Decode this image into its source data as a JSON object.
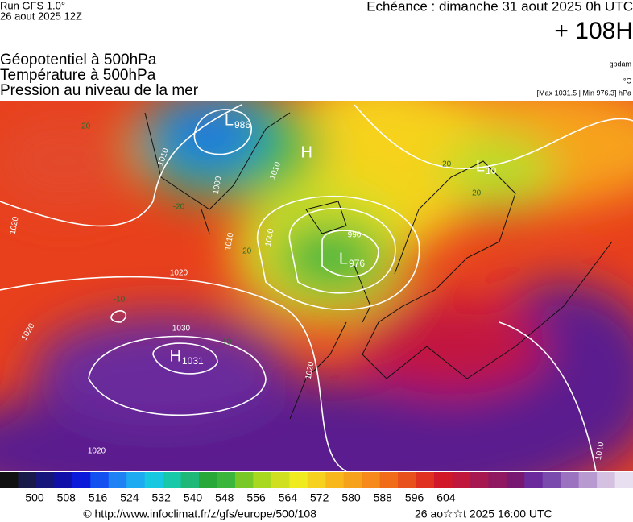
{
  "header": {
    "run": "Run GFS 1.0°",
    "run_date": "26 aout 2025 12Z",
    "valid": "Echéance : dimanche 31 aout 2025 0h UTC",
    "lead": "+ 108H",
    "fields": [
      "Géopotentiel à 500hPa",
      "Température à 500hPa",
      "Pression au niveau de la mer"
    ],
    "unit_geo": "gpdam",
    "unit_temp": "°C",
    "pressure_range": "[Max 1031.5 | Min 976.3] hPa"
  },
  "map": {
    "centers": [
      {
        "type": "L",
        "value": "986"
      },
      {
        "type": "H",
        "value": ""
      },
      {
        "type": "L",
        "value": "976"
      },
      {
        "type": "H",
        "value": "1031"
      },
      {
        "type": "L",
        "value": "10"
      }
    ],
    "isobar_labels": [
      "1010",
      "1000",
      "1010",
      "1000",
      "990",
      "1010",
      "1020",
      "1030",
      "1020",
      "1020",
      "1020",
      "1010",
      "1020"
    ],
    "temp_labels": [
      "-20",
      "-20",
      "-20",
      "-20",
      "-10",
      "-10",
      "-20"
    ]
  },
  "colorbar": {
    "labels": [
      "500",
      "508",
      "516",
      "524",
      "532",
      "540",
      "548",
      "556",
      "564",
      "572",
      "580",
      "588",
      "596",
      "604"
    ]
  },
  "footer": {
    "source": "© http://www.infoclimat.fr/z/gfs/europe/500/108",
    "generated": "26 ao☆☆t 2025 16:00 UTC"
  }
}
